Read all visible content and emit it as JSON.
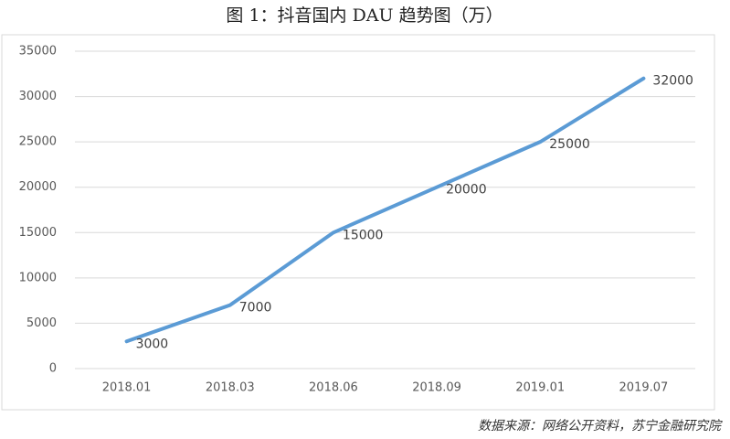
{
  "chart_data": {
    "type": "line",
    "title": "图 1：抖音国内 DAU 趋势图（万）",
    "categories": [
      "2018.01",
      "2018.03",
      "2018.06",
      "2018.09",
      "2019.01",
      "2019.07"
    ],
    "values": [
      3000,
      7000,
      15000,
      20000,
      25000,
      32000
    ],
    "color": "#5b9bd5",
    "ylim": [
      0,
      35000
    ],
    "yticks": [
      0,
      5000,
      10000,
      15000,
      20000,
      25000,
      30000,
      35000
    ],
    "grid": true,
    "source": "数据来源：网络公开资料，苏宁金融研究院"
  }
}
